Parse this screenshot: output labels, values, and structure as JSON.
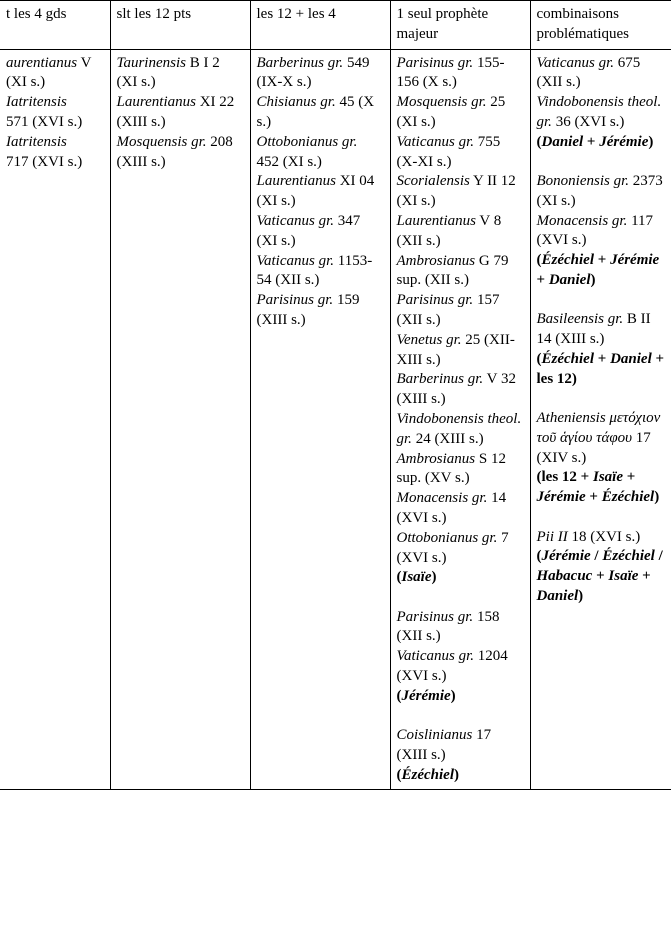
{
  "header": {
    "c0": "t les 4 gds",
    "c1": "slt les 12 pts",
    "c2": "les 12 + les 4",
    "c3": "1 seul prophète majeur",
    "c4": "combinaisons problématiques"
  },
  "col0": {
    "l1a": "aurentianus",
    "l1b": " V",
    "l1c": "(XI s.)",
    "l2a": "Iatritensis",
    "l2b": "571 (XVI s.)",
    "l3a": "Iatritensis",
    "l3b": "717 (XVI s.)"
  },
  "col1": {
    "l1a": "Taurinensis",
    "l1b": " B I 2 (XI s.)",
    "l2a": "Laurentianus",
    "l2b": " XI 22 (XIII s.)",
    "l3a": "Mosquensis gr.",
    "l3b": " 208 (XIII s.)"
  },
  "col2": {
    "l1a": "Barberinus gr.",
    "l1b": " 549 (IX-X s.)",
    "l2a": "Chisianus gr.",
    "l2b": " 45 (X s.)",
    "l3a": "Ottobonianus gr.",
    "l3b": " 452 (XI s.)",
    "l4a": "Laurentianus",
    "l4b": " XI 04 (XI s.)",
    "l5a": "Vaticanus gr.",
    "l5b": " 347 (XI s.)",
    "l6a": "Vaticanus gr.",
    "l6b": " 1153-54 (XII s.)",
    "l7a": "Parisinus gr.",
    "l7b": " 159 (XIII s.)"
  },
  "col3": {
    "l1a": "Parisinus gr.",
    "l1b": " 155-156 (X s.)",
    "l2a": "Mosquensis gr.",
    "l2b": " 25 (XI s.)",
    "l3a": "Vaticanus gr.",
    "l3b": " 755 (X-XI s.)",
    "l4a": "Scorialensis",
    "l4b": " Y II 12 (XI s.)",
    "l5a": "Laurentianus",
    "l5b": " V 8 (XII s.)",
    "l6a": "Ambrosianus",
    "l6b": " G 79 sup. (XII s.)",
    "l7a": "Parisinus gr.",
    "l7b": " 157 (XII s.)",
    "l8a": "Venetus gr.",
    "l8b": " 25 (XII-XIII s.)",
    "l9a": "Barberinus gr.",
    "l9b": " V 32 (XIII s.)",
    "l10a": "Vindobonensis theol. gr.",
    "l10b": " 24 (XIII s.)",
    "l11a": "Ambrosianus",
    "l11b": " S 12 sup. (XV s.)",
    "l12a": "Monacensis gr.",
    "l12b": " 14 (XVI s.)",
    "l13a": "Ottobonianus gr.",
    "l13b": " 7 (XVI s.)",
    "isaie_open": "(",
    "isaie": "Isaïe",
    "isaie_close": ")",
    "l14a": "Parisinus gr.",
    "l14b": " 158 (XII s.)",
    "l15a": "Vaticanus gr.",
    "l15b": " 1204 (XVI s.)",
    "jeremie_open": "(",
    "jeremie": "Jérémie",
    "jeremie_close": ")",
    "l16a": "Coislinianus",
    "l16b": " 17 (XIII s.)",
    "ezechiel_open": "(",
    "ezechiel": "Ézéchiel",
    "ezechiel_close": ")"
  },
  "col4": {
    "l1a": "Vaticanus gr.",
    "l1b": " 675 (XII s.)",
    "l2a": "Vindobonensis theol. gr.",
    "l2b": " 36 (XVI s.)",
    "p1_open": "(",
    "p1a": "Daniel",
    "p1_mid": " + ",
    "p1b": "Jérémie",
    "p1_close": ")",
    "l3a": "Bononiensis gr.",
    "l3b": " 2373 (XI s.)",
    "l4a": "Monacensis gr.",
    "l4b": " 117 (XVI s.)",
    "p2_pre": " (",
    "p2a": "Ézéchiel",
    "p2_m1": " + ",
    "p2b": "Jérémie",
    "p2_m2": " + ",
    "p2c": "Daniel",
    "p2_close": ")",
    "l5a": "Basileensis gr.",
    "l5b": " B II 14 (XIII s.)",
    "p3_open": "(",
    "p3a": "Ézéchiel",
    "p3_m1": " + ",
    "p3b": "Daniel",
    "p3_m2": " + ",
    "p3_txt": "les 12",
    "p3_close": ")",
    "l6a": "Atheniensis",
    "l6b": " μετόχιον τοῦ ἁγίου τάφου",
    "l6c": " 17 (XIV s.)",
    "p4_open": "(",
    "p4_txt": "les 12",
    "p4_m1": " + ",
    "p4a": "Isaïe",
    "p4_m2": " + ",
    "p4b": "Jérémie",
    "p4_m3": " + ",
    "p4c": "Ézéchiel",
    "p4_close": ")",
    "l7a": "Pii II",
    "l7b": " 18 (XVI s.)",
    "p5_open": "(",
    "p5a": "Jérémie",
    "p5_s1": " / ",
    "p5b": "Ézéchiel",
    "p5_s2": " / ",
    "p5c": "Habacuc",
    "p5_m1": " + ",
    "p5d": "Isaïe",
    "p5_m2": " + ",
    "p5e": "Daniel",
    "p5_close": ")"
  }
}
